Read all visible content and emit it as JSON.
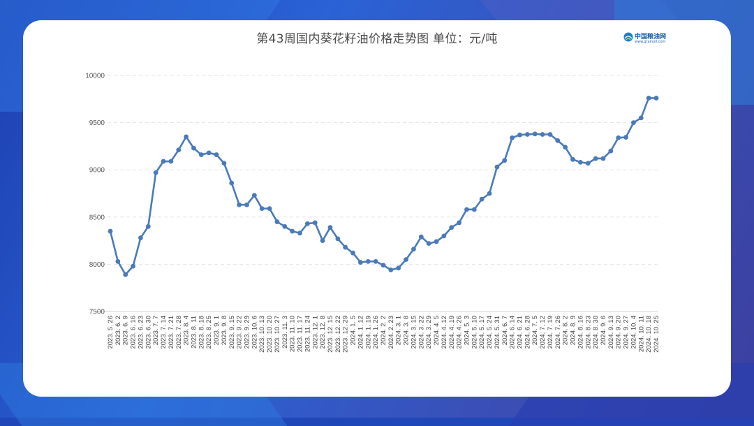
{
  "chart_data": {
    "type": "line",
    "title": "第43周国内葵花籽油价格走势图  单位：元/吨",
    "ylim": [
      7500,
      10000
    ],
    "yticks": [
      7500,
      8000,
      8500,
      9000,
      9500,
      10000
    ],
    "grid": true,
    "color": "#4a7ab9",
    "x": [
      "2023.5.26",
      "2023.6.2",
      "2023.6.9",
      "2023.6.16",
      "2023.6.23",
      "2023.6.30",
      "2023.7.7",
      "2023.7.14",
      "2023.7.21",
      "2023.7.28",
      "2023.8.4",
      "2023.8.11",
      "2023.8.18",
      "2023.8.25",
      "2023.9.1",
      "2023.9.8",
      "2023.9.15",
      "2023.9.22",
      "2023.9.29",
      "2023.10.6",
      "2023.10.13",
      "2023.10.20",
      "2023.10.27",
      "2023.11.3",
      "2023.11.10",
      "2023.11.17",
      "2023.11.24",
      "2023.12.1",
      "2023.12.8",
      "2023.12.15",
      "2023.12.22",
      "2023.12.29",
      "2024.1.5",
      "2024.1.12",
      "2024.1.19",
      "2024.1.26",
      "2024.2.2",
      "2024.2.23",
      "2024.3.1",
      "2024.3.8",
      "2024.3.15",
      "2024.3.22",
      "2024.3.29",
      "2024.4.5",
      "2024.4.12",
      "2024.4.19",
      "2024.4.26",
      "2024.5.3",
      "2024.5.10",
      "2024.5.17",
      "2024.5.24",
      "2024.5.31",
      "2024.6.7",
      "2024.6.14",
      "2024.6.21",
      "2024.6.28",
      "2024.7.5",
      "2024.7.12",
      "2024.7.19",
      "2024.7.26",
      "2024.8.2",
      "2024.8.9",
      "2024.8.16",
      "2024.8.23",
      "2024.8.30",
      "2024.9.6",
      "2024.9.13",
      "2024.9.20",
      "2024.9.27",
      "2024.10.4",
      "2024.10.11",
      "2024.10.18",
      "2024.10.25"
    ],
    "xlabels": [
      "2023. 5. 26",
      "2023. 6. 2",
      "2023. 6. 9",
      "2023. 6. 16",
      "2023. 6. 23",
      "2023. 6. 30",
      "2023. 7. 7",
      "2023. 7. 14",
      "2023. 7. 21",
      "2023. 7. 28",
      "2023. 8. 4",
      "2023. 8. 11",
      "2023. 8. 18",
      "2023. 8. 25",
      "2023. 9. 1",
      "2023. 9. 8",
      "2023. 9. 15",
      "2023. 9. 22",
      "2023. 9. 29",
      "2023. 10. 6",
      "2023. 10. 13",
      "2023. 10. 20",
      "2023. 10. 27",
      "2023. 11. 3",
      "2023. 11. 10",
      "2023. 11. 17",
      "2023. 11. 24",
      "2023. 12. 1",
      "2023. 12. 8",
      "2023. 12. 15",
      "2023. 12. 22",
      "2023. 12. 29",
      "2024. 1. 5",
      "2024. 1. 12",
      "2024. 1. 19",
      "2024. 1. 26",
      "2024. 2. 2",
      "2024. 2. 23",
      "2024. 3. 1",
      "2024. 3. 8",
      "2024. 3. 15",
      "2024. 3. 22",
      "2024. 3. 29",
      "2024. 4. 5",
      "2024. 4. 12",
      "2024. 4. 19",
      "2024. 4. 26",
      "2024. 5. 3",
      "2024. 5. 10",
      "2024. 5. 17",
      "2024. 5. 24",
      "2024. 5. 31",
      "2024. 6. 7",
      "2024. 6. 14",
      "2024. 6. 21",
      "2024. 6. 28",
      "2024. 7. 5",
      "2024. 7. 12",
      "2024. 7. 19",
      "2024. 7. 26",
      "2024. 8. 2",
      "2024. 8. 9",
      "2024. 8. 16",
      "2024. 8. 23",
      "2024. 8. 30",
      "2024. 9. 6",
      "2024. 9. 13",
      "2024. 9. 20",
      "2024. 9. 27",
      "2024. 10. 4",
      "2024. 10. 11",
      "2024. 10. 18",
      "2024. 10. 25"
    ],
    "xlabel_every": 1,
    "values": [
      8350,
      8030,
      7890,
      7980,
      8280,
      8400,
      8970,
      9090,
      9090,
      9210,
      9350,
      9230,
      9160,
      9180,
      9160,
      9070,
      8860,
      8630,
      8630,
      8730,
      8590,
      8590,
      8450,
      8400,
      8350,
      8330,
      8430,
      8440,
      8250,
      8390,
      8270,
      8180,
      8120,
      8020,
      8030,
      8030,
      7990,
      7940,
      7960,
      8050,
      8160,
      8290,
      8220,
      8240,
      8300,
      8390,
      8440,
      8580,
      8580,
      8690,
      8750,
      9030,
      9100,
      9340,
      9370,
      9375,
      9380,
      9375,
      9375,
      9310,
      9240,
      9110,
      9080,
      9070,
      9120,
      9120,
      9200,
      9340,
      9345,
      9500,
      9550,
      9760,
      9760
    ]
  },
  "logo": {
    "name": "中国粮油网",
    "url": "www.grainoil.com"
  }
}
